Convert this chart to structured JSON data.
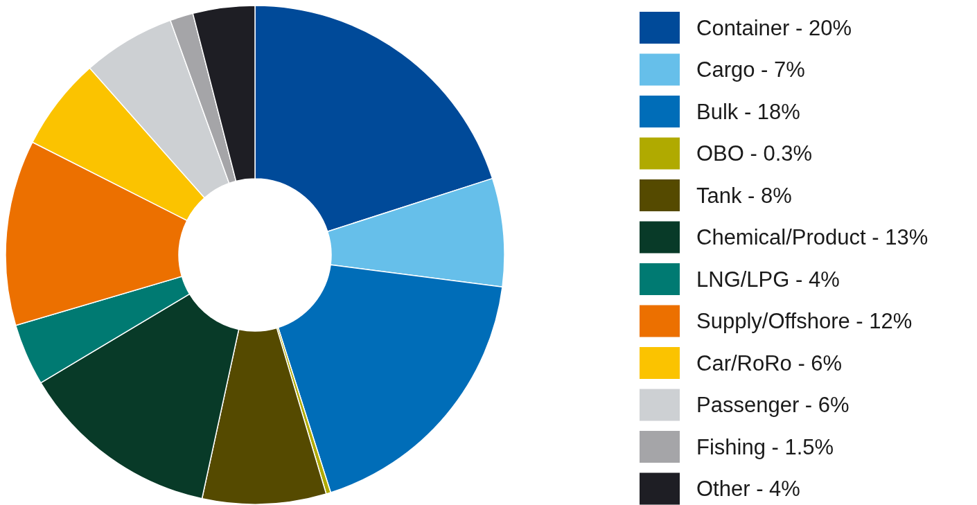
{
  "chart_data": {
    "type": "donut",
    "legend": "right",
    "categories": [
      "Container - 20%",
      "Cargo - 7%",
      "Bulk - 18%",
      "OBO - 0.3%",
      "Tank - 8%",
      "Chemical/Product - 13%",
      "LNG/LPG - 4%",
      "Supply/Offshore - 12%",
      "Car/RoRo - 6%",
      "Passenger - 6%",
      "Fishing - 1.5%",
      "Other - 4%"
    ],
    "values": [
      20,
      7,
      18,
      0.3,
      8,
      13,
      4,
      12,
      6,
      6,
      1.5,
      4
    ],
    "colors": [
      "#004a99",
      "#66bfea",
      "#006db8",
      "#b0aa00",
      "#554a00",
      "#083a28",
      "#007a72",
      "#ec7000",
      "#fbc300",
      "#cdd0d3",
      "#a5a5a8",
      "#1e1e24"
    ]
  }
}
